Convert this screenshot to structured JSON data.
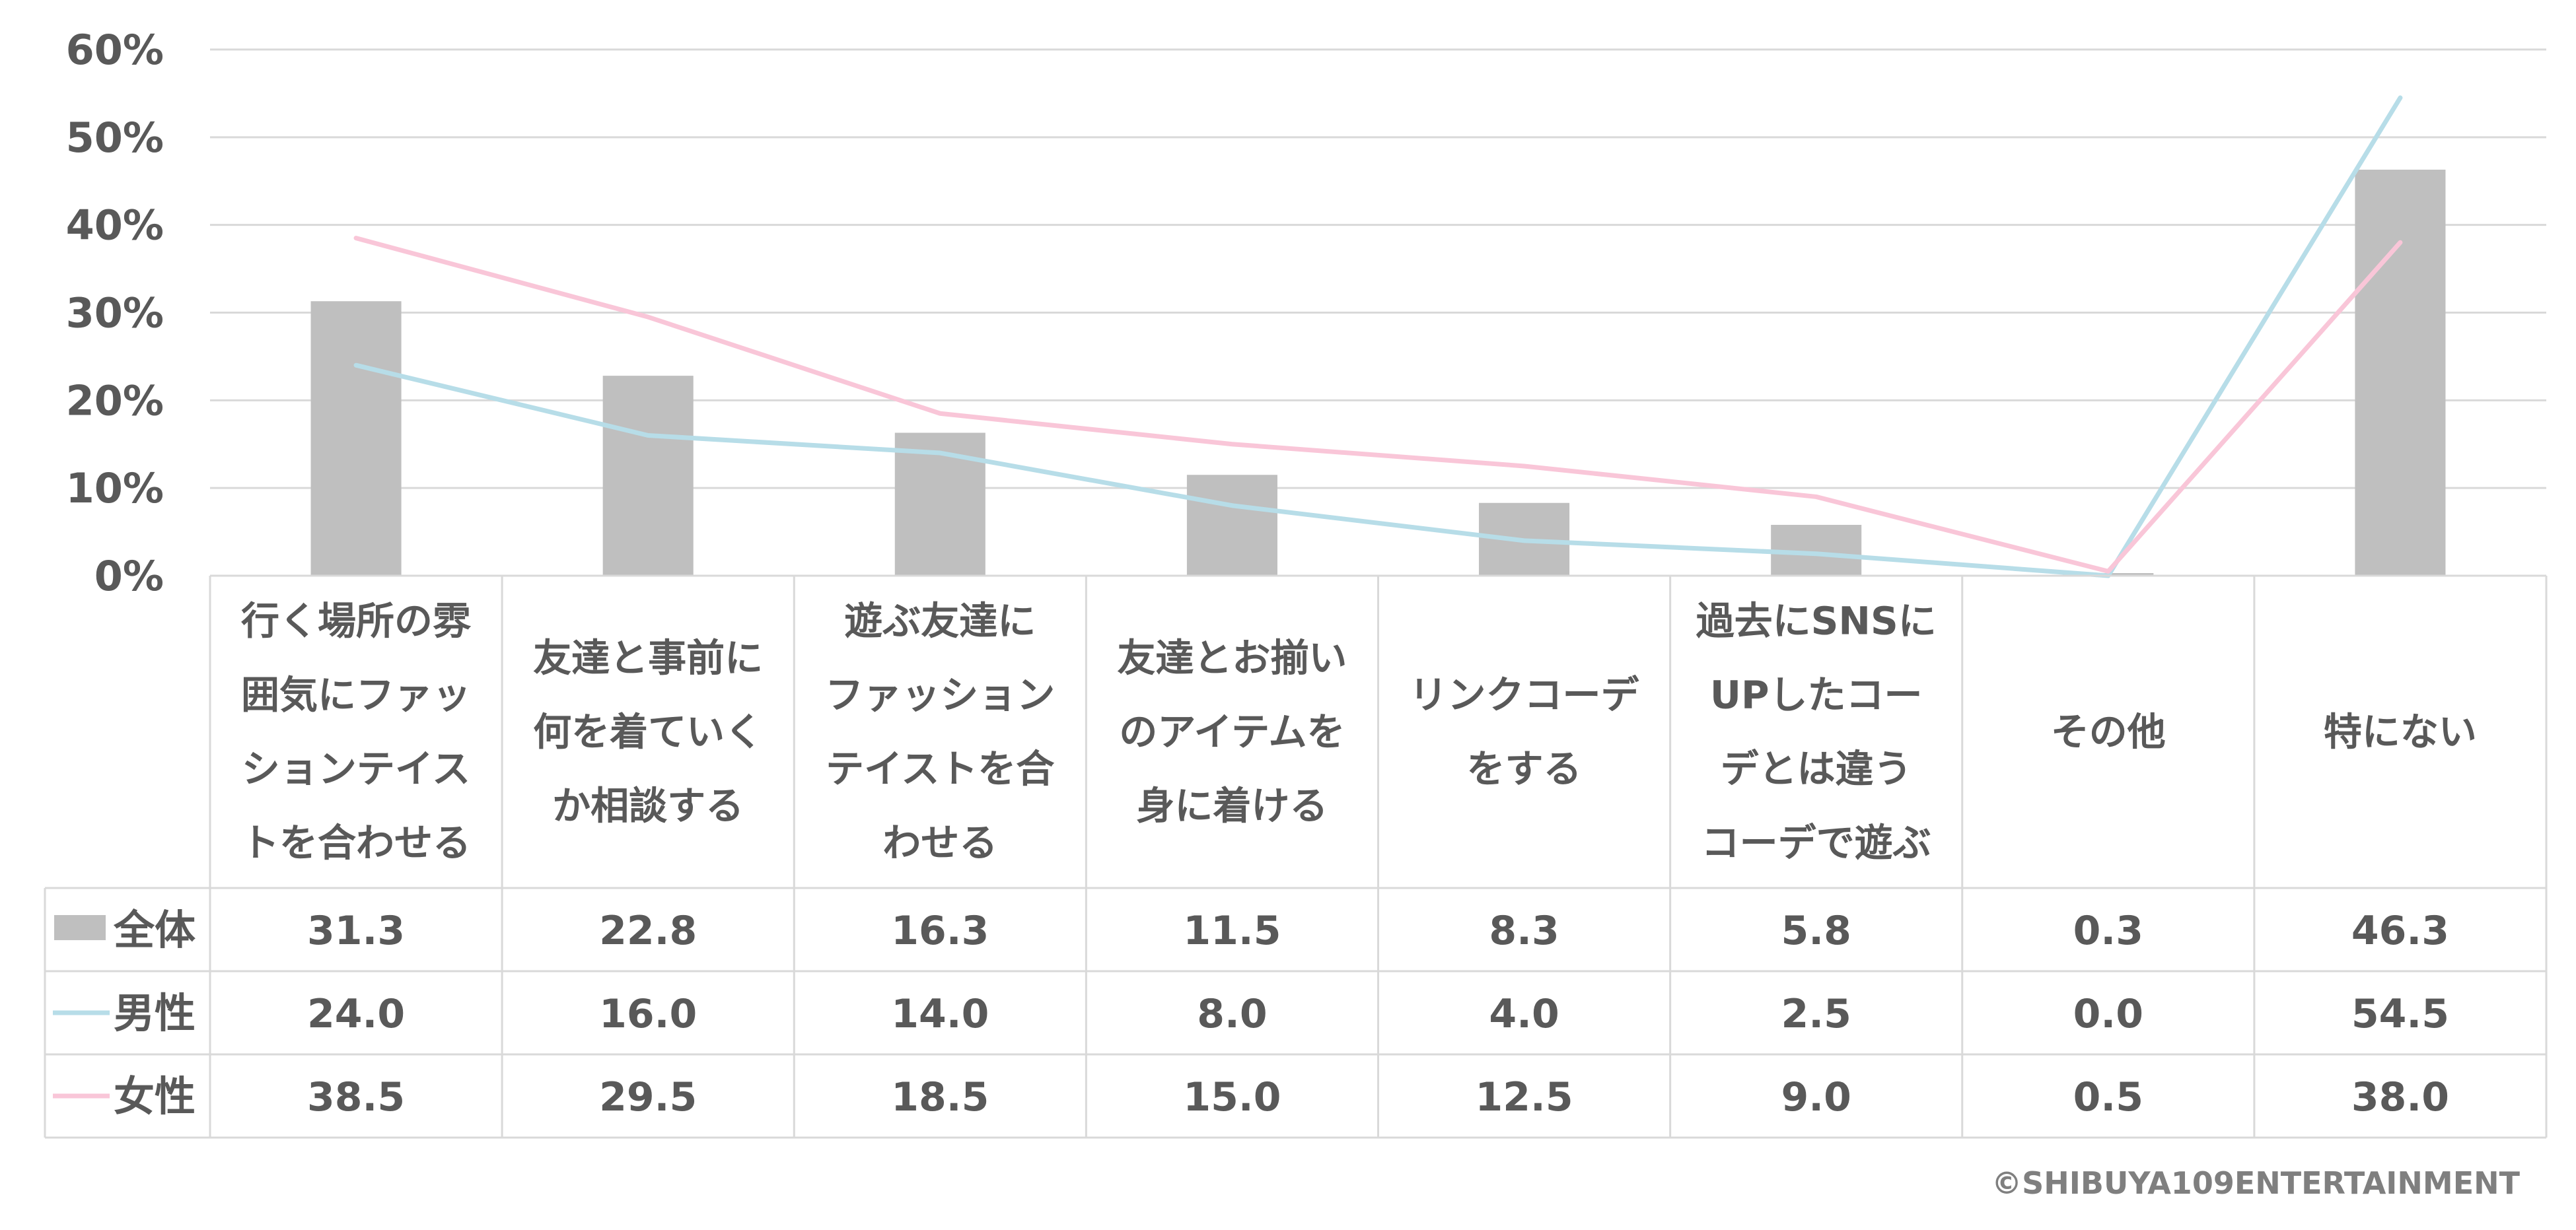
{
  "chart_data": {
    "type": "bar",
    "categories": [
      [
        "行く場所の雰",
        "囲気にファッ",
        "ションテイス",
        "トを合わせる"
      ],
      [
        "友達と事前に",
        "何を着ていく",
        "か相談する"
      ],
      [
        "遊ぶ友達に",
        "ファッション",
        "テイストを合",
        "わせる"
      ],
      [
        "友達とお揃い",
        "のアイテムを",
        "身に着ける"
      ],
      [
        "リンクコーデ",
        "をする"
      ],
      [
        "過去にSNSに",
        "UPしたコー",
        "デとは違う",
        "コーデで遊ぶ"
      ],
      [
        "その他"
      ],
      [
        "特にない"
      ]
    ],
    "series": [
      {
        "name": "全体",
        "type": "bar",
        "color": "#bfbfbf",
        "values": [
          31.3,
          22.8,
          16.3,
          11.5,
          8.3,
          5.8,
          0.3,
          46.3
        ],
        "labels": [
          "31.3",
          "22.8",
          "16.3",
          "11.5",
          "8.3",
          "5.8",
          "0.3",
          "46.3"
        ]
      },
      {
        "name": "男性",
        "type": "line",
        "color": "#b7dde8",
        "values": [
          24.0,
          16.0,
          14.0,
          8.0,
          4.0,
          2.5,
          0.0,
          54.5
        ],
        "labels": [
          "24.0",
          "16.0",
          "14.0",
          "8.0",
          "4.0",
          "2.5",
          "0.0",
          "54.5"
        ]
      },
      {
        "name": "女性",
        "type": "line",
        "color": "#f9c6d8",
        "values": [
          38.5,
          29.5,
          18.5,
          15.0,
          12.5,
          9.0,
          0.5,
          38.0
        ],
        "labels": [
          "38.5",
          "29.5",
          "18.5",
          "15.0",
          "12.5",
          "9.0",
          "0.5",
          "38.0"
        ]
      }
    ],
    "y_ticks": [
      "0%",
      "10%",
      "20%",
      "30%",
      "40%",
      "50%",
      "60%"
    ],
    "ylim": [
      0,
      60
    ],
    "grid": true,
    "legend": "data-table"
  },
  "credit": "©SHIBUYA109ENTERTAINMENT"
}
